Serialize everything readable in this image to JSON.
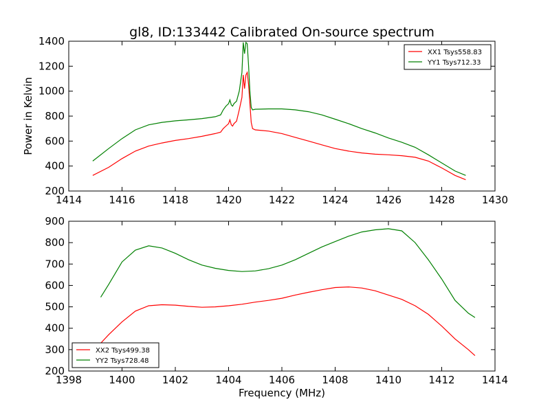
{
  "title": "gl8, ID:133442 Calibrated On-source spectrum",
  "colors": {
    "red": "#ff0000",
    "green": "#008000"
  },
  "chart_data": [
    {
      "type": "line",
      "title": "gl8, ID:133442 Calibrated On-source spectrum",
      "xlabel": "",
      "ylabel": "Power in Kelvin",
      "xlim": [
        1414,
        1430
      ],
      "ylim": [
        200,
        1400
      ],
      "xticks": [
        1414,
        1416,
        1418,
        1420,
        1422,
        1424,
        1426,
        1428,
        1430
      ],
      "yticks": [
        200,
        400,
        600,
        800,
        1000,
        1200,
        1400
      ],
      "grid": false,
      "legend": "top-right",
      "series": [
        {
          "name": "XX1 Tsys558.83",
          "color": "#ff0000",
          "x": [
            1414.9,
            1415.5,
            1416.0,
            1416.5,
            1417.0,
            1417.5,
            1418.0,
            1418.5,
            1419.0,
            1419.5,
            1419.7,
            1419.8,
            1419.9,
            1420.0,
            1420.05,
            1420.1,
            1420.15,
            1420.2,
            1420.3,
            1420.4,
            1420.5,
            1420.55,
            1420.6,
            1420.65,
            1420.7,
            1420.75,
            1420.8,
            1420.85,
            1420.9,
            1421.0,
            1421.5,
            1422.0,
            1422.5,
            1423.0,
            1423.5,
            1424.0,
            1424.5,
            1425.0,
            1425.5,
            1426.0,
            1426.5,
            1427.0,
            1427.5,
            1428.0,
            1428.5,
            1428.9
          ],
          "y": [
            325,
            390,
            460,
            520,
            560,
            585,
            605,
            620,
            638,
            660,
            672,
            700,
            720,
            740,
            770,
            730,
            720,
            740,
            760,
            850,
            950,
            1130,
            1020,
            1130,
            1150,
            1050,
            900,
            750,
            700,
            690,
            680,
            660,
            630,
            600,
            570,
            540,
            520,
            505,
            495,
            490,
            483,
            470,
            440,
            385,
            325,
            290
          ]
        },
        {
          "name": "YY1 Tsys712.33",
          "color": "#008000",
          "x": [
            1414.9,
            1415.5,
            1416.0,
            1416.5,
            1417.0,
            1417.5,
            1418.0,
            1418.5,
            1419.0,
            1419.5,
            1419.7,
            1419.8,
            1419.9,
            1420.0,
            1420.05,
            1420.1,
            1420.15,
            1420.2,
            1420.3,
            1420.4,
            1420.5,
            1420.55,
            1420.6,
            1420.65,
            1420.7,
            1420.75,
            1420.8,
            1420.85,
            1420.9,
            1421.0,
            1421.5,
            1422.0,
            1422.5,
            1423.0,
            1423.5,
            1424.0,
            1424.5,
            1425.0,
            1425.5,
            1426.0,
            1426.5,
            1427.0,
            1427.5,
            1428.0,
            1428.5,
            1428.9
          ],
          "y": [
            440,
            540,
            620,
            690,
            730,
            750,
            762,
            770,
            780,
            795,
            810,
            850,
            880,
            900,
            930,
            890,
            880,
            900,
            920,
            1000,
            1150,
            1390,
            1300,
            1390,
            1380,
            1200,
            1000,
            870,
            850,
            855,
            858,
            858,
            850,
            835,
            810,
            775,
            740,
            700,
            665,
            625,
            590,
            550,
            490,
            425,
            360,
            325
          ]
        }
      ]
    },
    {
      "type": "line",
      "title": "",
      "xlabel": "Frequency (MHz)",
      "ylabel": "",
      "xlim": [
        1398,
        1414
      ],
      "ylim": [
        200,
        900
      ],
      "xticks": [
        1398,
        1400,
        1402,
        1404,
        1406,
        1408,
        1410,
        1412,
        1414
      ],
      "yticks": [
        200,
        300,
        400,
        500,
        600,
        700,
        800,
        900
      ],
      "grid": false,
      "legend": "bottom-left",
      "series": [
        {
          "name": "XX2 Tsys499.38",
          "color": "#ff0000",
          "x": [
            1399.2,
            1399.5,
            1400.0,
            1400.5,
            1401.0,
            1401.5,
            1402.0,
            1402.5,
            1403.0,
            1403.5,
            1404.0,
            1404.5,
            1405.0,
            1405.5,
            1406.0,
            1406.5,
            1407.0,
            1407.5,
            1408.0,
            1408.5,
            1409.0,
            1409.5,
            1410.0,
            1410.5,
            1411.0,
            1411.5,
            1412.0,
            1412.5,
            1413.0,
            1413.25
          ],
          "y": [
            330,
            370,
            430,
            480,
            505,
            510,
            508,
            502,
            498,
            500,
            505,
            512,
            522,
            530,
            540,
            555,
            568,
            580,
            590,
            593,
            588,
            575,
            555,
            535,
            505,
            465,
            410,
            350,
            300,
            272
          ]
        },
        {
          "name": "YY2 Tsys728.48",
          "color": "#008000",
          "x": [
            1399.2,
            1399.5,
            1400.0,
            1400.5,
            1401.0,
            1401.5,
            1402.0,
            1402.5,
            1403.0,
            1403.5,
            1404.0,
            1404.5,
            1405.0,
            1405.5,
            1406.0,
            1406.5,
            1407.0,
            1407.5,
            1408.0,
            1408.5,
            1409.0,
            1409.5,
            1410.0,
            1410.5,
            1411.0,
            1411.5,
            1412.0,
            1412.5,
            1413.0,
            1413.25
          ],
          "y": [
            545,
            605,
            710,
            765,
            785,
            775,
            750,
            720,
            695,
            680,
            670,
            665,
            668,
            678,
            695,
            720,
            750,
            780,
            805,
            830,
            850,
            860,
            865,
            855,
            800,
            720,
            630,
            530,
            470,
            450
          ]
        }
      ]
    }
  ]
}
